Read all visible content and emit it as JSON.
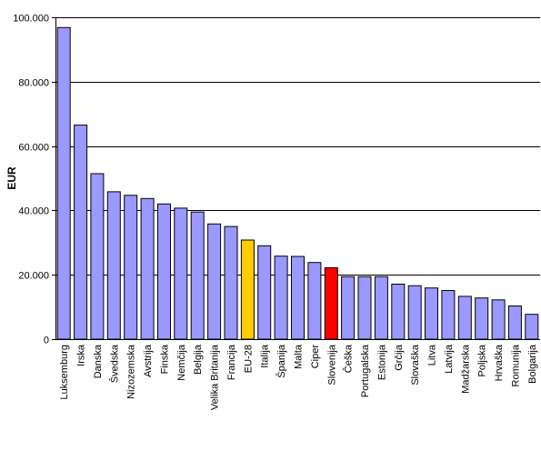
{
  "chart_data": {
    "type": "bar",
    "title": "",
    "xlabel": "",
    "ylabel": "EUR",
    "ylim": [
      0,
      100000
    ],
    "yticks": [
      0,
      20000,
      40000,
      60000,
      80000,
      100000
    ],
    "ytick_labels": [
      "0",
      "20.000",
      "40.000",
      "60.000",
      "80.000",
      "100.000"
    ],
    "grid": true,
    "legend": "none",
    "colors": {
      "default": "#9999ff",
      "highlight_eu": "#ffcc00",
      "highlight_si": "#ff0000",
      "outline": "#000000",
      "grid": "#000000"
    },
    "categories": [
      "Luksemburg",
      "Irska",
      "Danska",
      "Švedska",
      "Nizozemska",
      "Avstrija",
      "Finska",
      "Nemčija",
      "Belgija",
      "Velika Britanija",
      "Francija",
      "EU-28",
      "Italija",
      "Španija",
      "Malta",
      "Ciper",
      "Slovenija",
      "Češka",
      "Portugalska",
      "Estonija",
      "Grčija",
      "Slovaška",
      "Litva",
      "Latvija",
      "Madžarska",
      "Poljska",
      "Hrvaška",
      "Romunija",
      "Bolgarija"
    ],
    "values": [
      96800,
      66500,
      51400,
      45800,
      44700,
      43700,
      42000,
      40700,
      39500,
      35800,
      35000,
      30800,
      29000,
      25800,
      25700,
      23800,
      22200,
      19400,
      19400,
      19400,
      17100,
      16600,
      15900,
      15100,
      13300,
      12800,
      12200,
      10300,
      7700
    ],
    "highlight": {
      "EU-28": "highlight_eu",
      "Slovenija": "highlight_si"
    }
  }
}
